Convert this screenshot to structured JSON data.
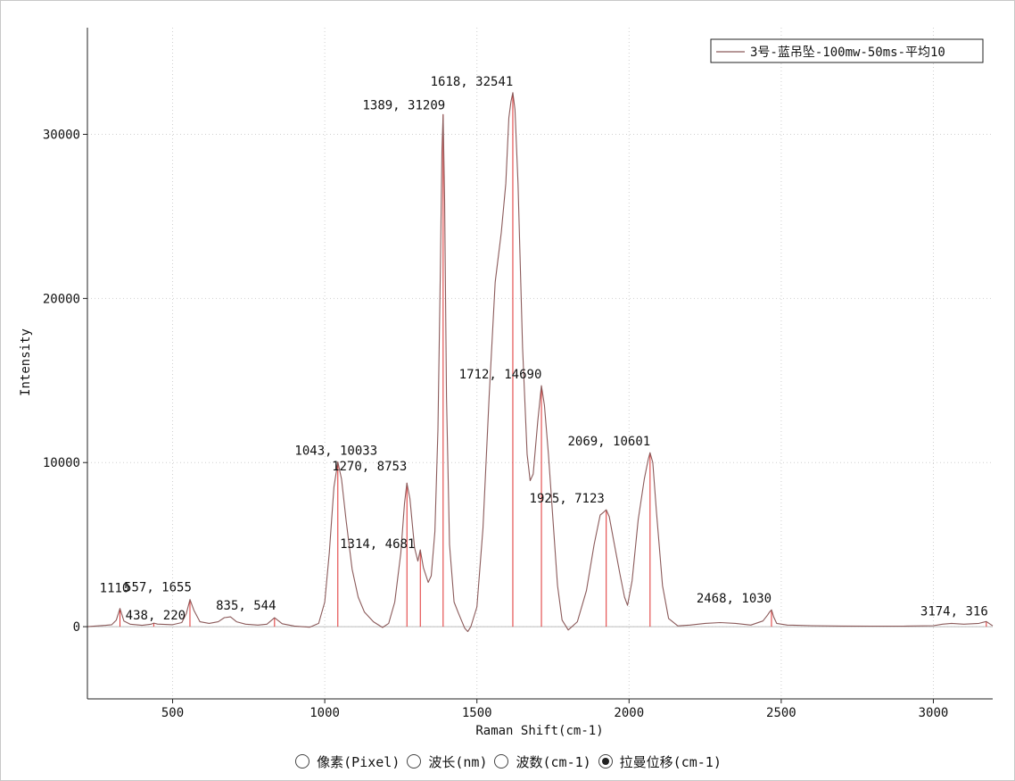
{
  "chart_data": {
    "type": "line",
    "xlabel": "Raman Shift(cm-1)",
    "ylabel": "Intensity",
    "xlim": [
      220,
      3195
    ],
    "ylim": [
      -4400,
      36500
    ],
    "x_ticks": [
      500,
      1000,
      1500,
      2000,
      2500,
      3000
    ],
    "y_ticks": [
      0,
      10000,
      20000,
      30000
    ],
    "grid": true,
    "legend": {
      "position": "top-right",
      "entries": [
        "3号-蓝吊坠-100mw-50ms-平均10"
      ]
    },
    "series": [
      {
        "name": "3号-蓝吊坠-100mw-50ms-平均10",
        "color": "#8b5a5a",
        "x": [
          220,
          280,
          300,
          315,
          327,
          340,
          360,
          400,
          430,
          438,
          450,
          500,
          530,
          545,
          557,
          570,
          590,
          620,
          650,
          670,
          690,
          710,
          740,
          780,
          810,
          835,
          860,
          900,
          950,
          980,
          1000,
          1015,
          1030,
          1043,
          1055,
          1070,
          1090,
          1110,
          1130,
          1160,
          1190,
          1210,
          1230,
          1250,
          1262,
          1270,
          1280,
          1295,
          1306,
          1314,
          1324,
          1340,
          1350,
          1362,
          1372,
          1380,
          1385,
          1389,
          1394,
          1400,
          1410,
          1425,
          1440,
          1460,
          1470,
          1480,
          1500,
          1520,
          1540,
          1560,
          1580,
          1595,
          1605,
          1612,
          1618,
          1625,
          1635,
          1650,
          1665,
          1675,
          1685,
          1700,
          1712,
          1722,
          1735,
          1750,
          1765,
          1780,
          1800,
          1830,
          1860,
          1885,
          1905,
          1918,
          1925,
          1935,
          1950,
          1970,
          1985,
          1995,
          2010,
          2030,
          2050,
          2063,
          2069,
          2078,
          2090,
          2110,
          2130,
          2160,
          2200,
          2250,
          2300,
          2350,
          2400,
          2440,
          2455,
          2462,
          2468,
          2475,
          2485,
          2520,
          2600,
          2700,
          2800,
          2900,
          3000,
          3030,
          3060,
          3100,
          3150,
          3174,
          3195
        ],
        "y": [
          0,
          80,
          120,
          400,
          1110,
          350,
          150,
          80,
          150,
          220,
          160,
          120,
          250,
          800,
          1655,
          1000,
          300,
          200,
          300,
          550,
          600,
          300,
          150,
          100,
          150,
          544,
          180,
          40,
          -30,
          200,
          1500,
          4500,
          8500,
          10033,
          9000,
          6500,
          3500,
          1800,
          900,
          300,
          -50,
          200,
          1500,
          4500,
          7500,
          8753,
          7800,
          4800,
          4000,
          4681,
          3600,
          2700,
          3100,
          5800,
          12000,
          22000,
          29000,
          31209,
          26000,
          14000,
          5000,
          1500,
          800,
          -100,
          -300,
          0,
          1200,
          6000,
          14000,
          21000,
          24000,
          27000,
          31000,
          32000,
          32541,
          31500,
          27000,
          17000,
          10500,
          8900,
          9300,
          12500,
          14690,
          13500,
          10500,
          6500,
          2500,
          400,
          -200,
          300,
          2200,
          5000,
          6800,
          7000,
          7123,
          6700,
          5200,
          3200,
          1800,
          1300,
          2800,
          6500,
          9000,
          10200,
          10601,
          10000,
          7000,
          2500,
          500,
          50,
          100,
          200,
          250,
          200,
          100,
          350,
          700,
          900,
          1030,
          600,
          200,
          100,
          60,
          40,
          30,
          30,
          60,
          150,
          200,
          150,
          200,
          316,
          50
        ]
      }
    ],
    "peaks": [
      {
        "x": 327,
        "y": 1110,
        "label": "1110"
      },
      {
        "x": 438,
        "y": 220,
        "label": "438, 220"
      },
      {
        "x": 557,
        "y": 1655,
        "label": "557, 1655"
      },
      {
        "x": 835,
        "y": 544,
        "label": "835, 544"
      },
      {
        "x": 1043,
        "y": 10033,
        "label": "1043, 10033"
      },
      {
        "x": 1270,
        "y": 8753,
        "label": "1270, 8753"
      },
      {
        "x": 1314,
        "y": 4681,
        "label": "1314, 4681"
      },
      {
        "x": 1389,
        "y": 31209,
        "label": "1389, 31209"
      },
      {
        "x": 1618,
        "y": 32541,
        "label": "1618, 32541"
      },
      {
        "x": 1712,
        "y": 14690,
        "label": "1712, 14690"
      },
      {
        "x": 1925,
        "y": 7123,
        "label": "1925, 7123"
      },
      {
        "x": 2069,
        "y": 10601,
        "label": "2069, 10601"
      },
      {
        "x": 2468,
        "y": 1030,
        "label": "2468, 1030"
      },
      {
        "x": 3174,
        "y": 316,
        "label": "3174, 316"
      }
    ],
    "peak_color": "#e03030"
  },
  "controls": {
    "modes": [
      {
        "label": "像素(Pixel)",
        "selected": false
      },
      {
        "label": "波长(nm)",
        "selected": false
      },
      {
        "label": "波数(cm-1)",
        "selected": false
      },
      {
        "label": "拉曼位移(cm-1)",
        "selected": true
      }
    ]
  }
}
